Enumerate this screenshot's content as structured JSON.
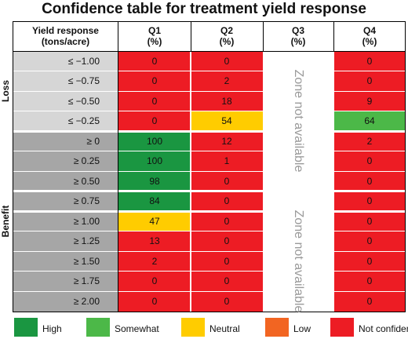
{
  "chart_data": {
    "type": "table",
    "title": "Confidence table for treatment yield response",
    "row_header": [
      "Yield response",
      "(tons/acre)"
    ],
    "columns": [
      {
        "name": "Q1",
        "unit": "(%)"
      },
      {
        "name": "Q2",
        "unit": "(%)"
      },
      {
        "name": "Q3",
        "unit": "(%)"
      },
      {
        "name": "Q4",
        "unit": "(%)"
      }
    ],
    "groups": [
      {
        "label": "Loss",
        "rows": [
          0,
          1,
          2,
          3
        ]
      },
      {
        "label": "Benefit",
        "rows": [
          4,
          5,
          6,
          7,
          8,
          9,
          10,
          11,
          12
        ]
      }
    ],
    "rows": [
      {
        "label": "≤ −1.00",
        "values": [
          "0",
          "0",
          null,
          "0"
        ],
        "levels": [
          "not_confident",
          "not_confident",
          null,
          "not_confident"
        ]
      },
      {
        "label": "≤ −0.75",
        "values": [
          "0",
          "2",
          null,
          "0"
        ],
        "levels": [
          "not_confident",
          "not_confident",
          null,
          "not_confident"
        ]
      },
      {
        "label": "≤ −0.50",
        "values": [
          "0",
          "18",
          null,
          "9"
        ],
        "levels": [
          "not_confident",
          "not_confident",
          null,
          "not_confident"
        ]
      },
      {
        "label": "≤ −0.25",
        "values": [
          "0",
          "54",
          null,
          "64"
        ],
        "levels": [
          "not_confident",
          "neutral",
          null,
          "somewhat"
        ]
      },
      {
        "label": "≥ 0",
        "values": [
          "100",
          "12",
          null,
          "2"
        ],
        "levels": [
          "high",
          "not_confident",
          null,
          "not_confident"
        ]
      },
      {
        "label": "≥ 0.25",
        "values": [
          "100",
          "1",
          null,
          "0"
        ],
        "levels": [
          "high",
          "not_confident",
          null,
          "not_confident"
        ]
      },
      {
        "label": "≥ 0.50",
        "values": [
          "98",
          "0",
          null,
          "0"
        ],
        "levels": [
          "high",
          "not_confident",
          null,
          "not_confident"
        ]
      },
      {
        "label": "≥ 0.75",
        "values": [
          "84",
          "0",
          null,
          "0"
        ],
        "levels": [
          "high",
          "not_confident",
          null,
          "not_confident"
        ]
      },
      {
        "label": "≥ 1.00",
        "values": [
          "47",
          "0",
          null,
          "0"
        ],
        "levels": [
          "neutral",
          "not_confident",
          null,
          "not_confident"
        ]
      },
      {
        "label": "≥ 1.25",
        "values": [
          "13",
          "0",
          null,
          "0"
        ],
        "levels": [
          "not_confident",
          "not_confident",
          null,
          "not_confident"
        ]
      },
      {
        "label": "≥ 1.50",
        "values": [
          "2",
          "0",
          null,
          "0"
        ],
        "levels": [
          "not_confident",
          "not_confident",
          null,
          "not_confident"
        ]
      },
      {
        "label": "≥ 1.75",
        "values": [
          "0",
          "0",
          null,
          "0"
        ],
        "levels": [
          "not_confident",
          "not_confident",
          null,
          "not_confident"
        ]
      },
      {
        "label": "≥ 2.00",
        "values": [
          "0",
          "0",
          null,
          "0"
        ],
        "levels": [
          "not_confident",
          "not_confident",
          null,
          "not_confident"
        ]
      }
    ],
    "zone_text": "Zone not available",
    "legend": [
      {
        "key": "high",
        "label": "High",
        "color": "#1a9641"
      },
      {
        "key": "somewhat",
        "label": "Somewhat",
        "color": "#4cb848"
      },
      {
        "key": "neutral",
        "label": "Neutral",
        "color": "#ffcc00"
      },
      {
        "key": "low",
        "label": "Low",
        "color": "#f26522"
      },
      {
        "key": "not_confident",
        "label": "Not confident",
        "color": "#ed1c24"
      }
    ],
    "row_label_colors": {
      "loss": "#d6d6d6",
      "benefit": "#a6a6a6"
    }
  }
}
